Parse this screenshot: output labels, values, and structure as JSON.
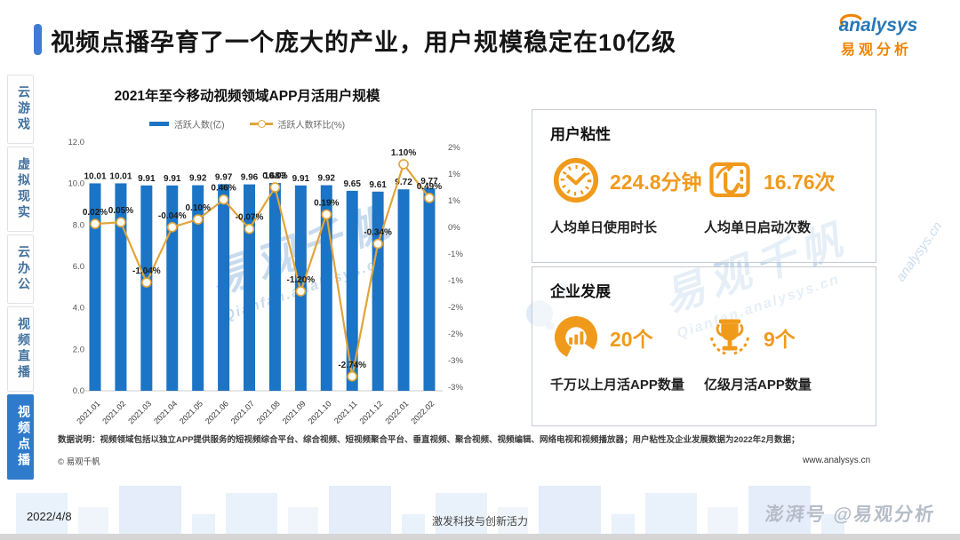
{
  "header": {
    "title": "视频点播孕育了一个庞大的产业，用户规模稳定在10亿级"
  },
  "logo": {
    "wordmark": "analysys",
    "cn": "易观分析"
  },
  "sidebar": {
    "items": [
      {
        "label": "云游戏",
        "active": false
      },
      {
        "label": "虚拟现实",
        "active": false
      },
      {
        "label": "云办公",
        "active": false
      },
      {
        "label": "视频直播",
        "active": false
      },
      {
        "label": "视频点播",
        "active": true
      }
    ]
  },
  "chart_data": {
    "type": "bar+line",
    "title": "2021年至今移动视频领域APP月活用户规模",
    "categories": [
      "2021.01",
      "2021.02",
      "2021.03",
      "2021.04",
      "2021.05",
      "2021.06",
      "2021.07",
      "2021.08",
      "2021.09",
      "2021.10",
      "2021.11",
      "2021.12",
      "2022.01",
      "2022.02"
    ],
    "series": [
      {
        "name": "活跃人数(亿)",
        "type": "bar",
        "color": "#1b74c5",
        "values": [
          10.01,
          10.01,
          9.91,
          9.91,
          9.92,
          9.97,
          9.96,
          10.03,
          9.91,
          9.92,
          9.65,
          9.61,
          9.72,
          9.77
        ],
        "labels": [
          "10.01",
          "10.01",
          "9.91",
          "9.91",
          "9.92",
          "9.97",
          "9.96",
          "10.03",
          "9.91",
          "9.92",
          "9.65",
          "9.61",
          "9.72",
          "9.77"
        ]
      },
      {
        "name": "活跃人数环比(%)",
        "type": "line",
        "color": "#dfa53c",
        "values": [
          0.02,
          0.05,
          -1.04,
          -0.04,
          0.1,
          0.46,
          -0.07,
          0.68,
          -1.2,
          0.19,
          -2.74,
          -0.34,
          1.1,
          0.49
        ],
        "labels": [
          "0.02%",
          "0.05%",
          "-1.04%",
          "-0.04%",
          "0.10%",
          "0.46%",
          "-0.07%",
          "0.68%",
          "-1.20%",
          "0.19%",
          "-2.74%",
          "-0.34%",
          "1.10%",
          "0.49%"
        ]
      }
    ],
    "left_axis": {
      "ticks": [
        "12.0",
        "10.0",
        "8.0",
        "6.0",
        "4.0",
        "2.0",
        "0.0"
      ],
      "min": 0,
      "max": 12
    },
    "right_axis": {
      "ticks": [
        "2%",
        "1%",
        "1%",
        "0%",
        "-1%",
        "-1%",
        "-2%",
        "-2%",
        "-3%",
        "-3%"
      ],
      "plot_max": 1.5,
      "plot_min": -3
    },
    "legend_position": "top",
    "grid": false
  },
  "panels": {
    "user_stickiness": {
      "title": "用户粘性",
      "metrics": [
        {
          "icon": "clock-icon",
          "value": "224.8分钟",
          "caption": "人均单日使用时长"
        },
        {
          "icon": "tap-icon",
          "value": "16.76次",
          "caption": "人均单日启动次数"
        }
      ]
    },
    "enterprise": {
      "title": "企业发展",
      "metrics": [
        {
          "icon": "donut-chart-icon",
          "value": "20个",
          "caption": "千万以上月活APP数量"
        },
        {
          "icon": "trophy-icon",
          "value": "9个",
          "caption": "亿级月活APP数量"
        }
      ]
    }
  },
  "notes": {
    "data_note": "数据说明：视频领域包括以独立APP提供服务的短视频综合平台、综合视频、短视频聚合平台、垂直视频、聚合视频、视频编辑、网络电视和视频播放器；用户粘性及企业发展数据为2022年2月数据；",
    "copyright": "© 易观千帆",
    "website": "www.analysys.cn"
  },
  "footer": {
    "date": "2022/4/8",
    "slogan": "激发科技与创新活力",
    "byline": "澎湃号 @易观分析"
  },
  "watermarks": {
    "chart_cn": "易观千帆",
    "chart_en": "Qianfan.analysys.cn",
    "panel_cn": "易观千帆",
    "panel_en": "Qianfan.analysys.cn",
    "side_en": "analysys.cn"
  },
  "colors": {
    "bar_blue": "#1b74c5",
    "line_gold": "#dfa53c",
    "accent_blue": "#3e7bd6",
    "brand_orange": "#f09a1c"
  }
}
